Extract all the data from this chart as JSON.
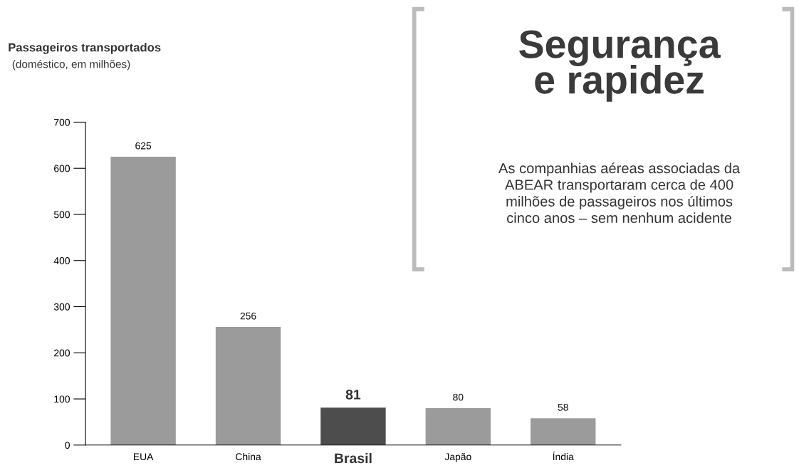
{
  "chart_data": {
    "type": "bar",
    "title": "Passageiros transportados",
    "subtitle": "(doméstico, em milhões)",
    "categories": [
      "EUA",
      "China",
      "Brasil",
      "Japão",
      "Índia"
    ],
    "values": [
      625,
      256,
      81,
      80,
      58
    ],
    "colors": [
      "#9b9b9b",
      "#9b9b9b",
      "#4d4d4d",
      "#9b9b9b",
      "#9b9b9b"
    ],
    "ylim": [
      0,
      700
    ],
    "yticks": [
      0,
      100,
      200,
      300,
      400,
      500,
      600,
      700
    ],
    "data_labels": true,
    "grid": false,
    "legend": false,
    "annotations": [
      "Segurança\ne rapidez",
      "As companhias aéreas associadas da\nABEAR transportaram cerca de 400\nmilhões de passageiros nos últimos\ncinco anos – sem nenhum acidente"
    ]
  }
}
